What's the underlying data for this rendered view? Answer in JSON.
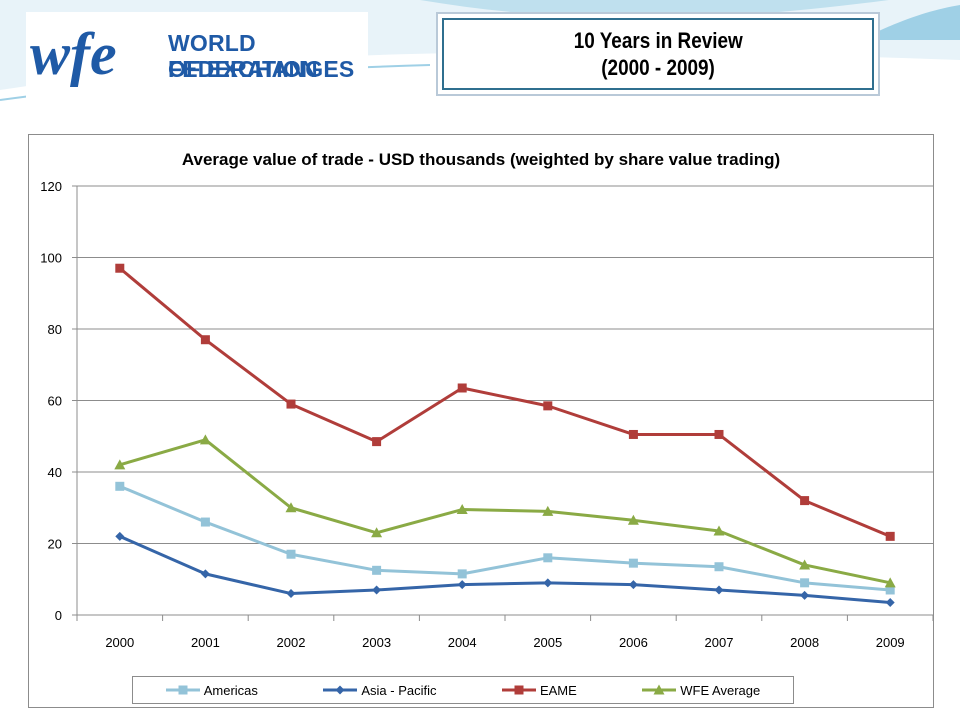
{
  "header": {
    "logo_text": [
      "WORLD FEDERATION",
      "OF EXCHANGES"
    ],
    "logo_mark": "wfe",
    "title_lines": [
      "10 Years in Review",
      "(2000 - 2009)"
    ]
  },
  "colors": {
    "americas": "#93c3d8",
    "asia_pacific": "#3565a8",
    "eame": "#b03d3a",
    "wfe_average": "#8aaa45",
    "logo_blue": "#1f5aa6",
    "gridline": "#8c8c8c"
  },
  "chart_data": {
    "type": "line",
    "title": "Average value of trade - USD thousands (weighted by share value trading)",
    "xlabel": "",
    "ylabel": "",
    "categories": [
      "2000",
      "2001",
      "2002",
      "2003",
      "2004",
      "2005",
      "2006",
      "2007",
      "2008",
      "2009"
    ],
    "ylim": [
      0,
      120
    ],
    "yticks": [
      "0",
      "20",
      "40",
      "60",
      "80",
      "100",
      "120"
    ],
    "grid": true,
    "legend_position": "bottom",
    "series": [
      {
        "name": "Americas",
        "marker": "square",
        "color": "#93c3d8",
        "values": [
          36,
          26,
          17,
          12.5,
          11.5,
          16,
          14.5,
          13.5,
          9,
          7
        ]
      },
      {
        "name": "Asia - Pacific",
        "marker": "diamond",
        "color": "#3565a8",
        "values": [
          22,
          11.5,
          6,
          7,
          8.5,
          9,
          8.5,
          7,
          5.5,
          3.5
        ]
      },
      {
        "name": "EAME",
        "marker": "square",
        "color": "#b03d3a",
        "values": [
          97,
          77,
          59,
          48.5,
          63.5,
          58.5,
          50.5,
          50.5,
          32,
          22
        ]
      },
      {
        "name": "WFE Average",
        "marker": "triangle",
        "color": "#8aaa45",
        "values": [
          42,
          49,
          30,
          23,
          29.5,
          29,
          26.5,
          23.5,
          14,
          9
        ]
      }
    ]
  }
}
